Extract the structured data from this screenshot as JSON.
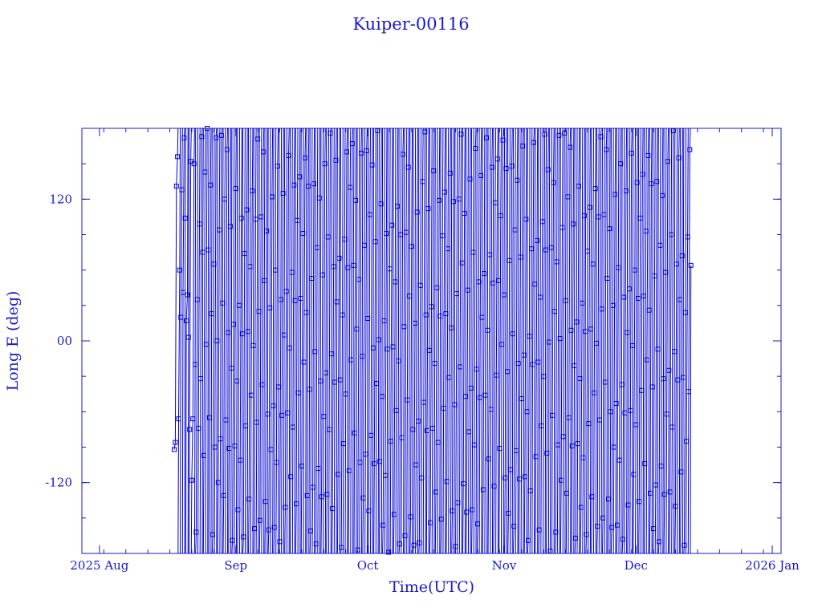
{
  "chart_data": {
    "type": "line",
    "title": "Kuiper-00116",
    "xlabel": "Time(UTC)",
    "ylabel": "Long E (deg)",
    "color": "#0000cc",
    "x_range": [
      "2025-07-28",
      "2026-01-03"
    ],
    "ylim": [
      -180,
      180
    ],
    "x_ticks": [
      {
        "date": "2025-08-01",
        "label": "2025 Aug"
      },
      {
        "date": "2025-09-01",
        "label": "Sep"
      },
      {
        "date": "2025-10-01",
        "label": "Oct"
      },
      {
        "date": "2025-11-01",
        "label": "Nov"
      },
      {
        "date": "2025-12-01",
        "label": "Dec"
      },
      {
        "date": "2026-01-01",
        "label": "2026 Jan"
      }
    ],
    "y_ticks": [
      {
        "value": 120,
        "label": "120"
      },
      {
        "value": 0,
        "label": "00"
      },
      {
        "value": -120,
        "label": "-120"
      }
    ],
    "series": [
      {
        "marker": "square",
        "note_values": "longitude sawtooth wrapping -180..180; sampled ~every 0.25 day from start_date to end_date",
        "start_date": "2025-08-18",
        "end_date": "2025-12-13",
        "points": [
          [
            "2025-08-18T00:00",
            -92
          ],
          [
            "2025-08-18T06:00",
            -86
          ],
          [
            "2025-08-18T12:00",
            131
          ],
          [
            "2025-08-18T18:00",
            156
          ],
          [
            "2025-08-19T00:00",
            -66
          ],
          [
            "2025-08-19T06:00",
            60
          ],
          [
            "2025-08-19T12:00",
            20
          ],
          [
            "2025-08-19T18:00",
            128
          ],
          [
            "2025-08-20T00:00",
            41
          ],
          [
            "2025-08-20T06:00",
            172
          ],
          [
            "2025-08-20T12:00",
            104
          ],
          [
            "2025-08-20T18:00",
            17
          ],
          [
            "2025-08-21T00:00",
            39
          ],
          [
            "2025-08-21T06:00",
            3
          ],
          [
            "2025-08-21T12:00",
            -75
          ],
          [
            "2025-08-21T18:00",
            152
          ],
          [
            "2025-08-22T00:00",
            -118
          ],
          [
            "2025-08-22T06:00",
            -66
          ],
          [
            "2025-08-22T12:00",
            150
          ],
          [
            "2025-08-22T18:00",
            -20
          ]
        ]
      }
    ]
  }
}
